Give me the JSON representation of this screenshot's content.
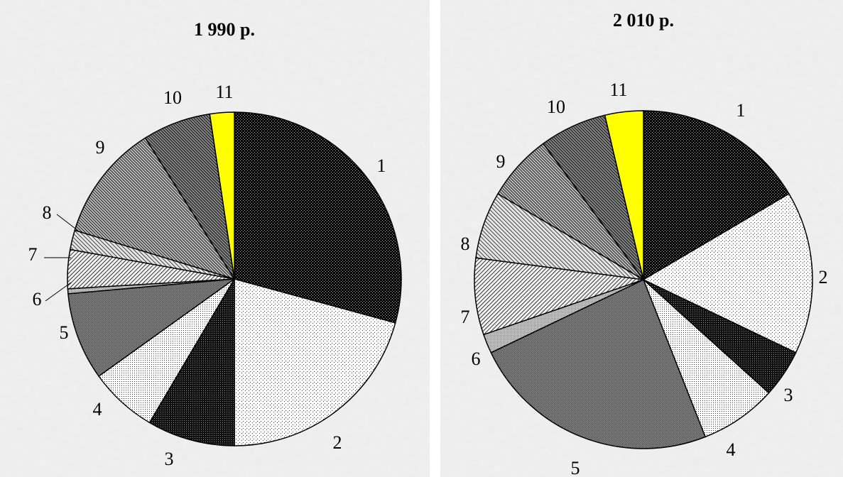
{
  "chart_data": [
    {
      "type": "pie",
      "title": "1 990 р.",
      "categories": [
        "1",
        "2",
        "3",
        "4",
        "5",
        "6",
        "7",
        "8",
        "9",
        "10",
        "11"
      ],
      "values": [
        31,
        22,
        9,
        7,
        9,
        0.5,
        4,
        2,
        12,
        7,
        2.5
      ],
      "start": "12 o'clock",
      "direction": "clockwise",
      "legend": "none"
    },
    {
      "type": "pie",
      "title": "2 010 р.",
      "categories": [
        "1",
        "2",
        "3",
        "4",
        "5",
        "6",
        "7",
        "8",
        "9",
        "10",
        "11"
      ],
      "values": [
        18,
        17,
        5,
        8,
        26,
        2,
        8,
        7,
        7,
        7,
        4
      ],
      "start": "12 o'clock",
      "direction": "clockwise",
      "legend": "none"
    }
  ],
  "colors": {
    "background": "#f1f1f1",
    "highlight": "#ffff00"
  }
}
